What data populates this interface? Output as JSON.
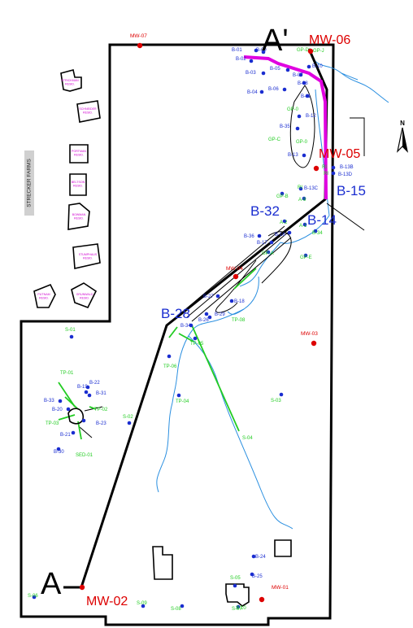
{
  "map": {
    "farm_label": "STRECKER FARMS",
    "section_labels": {
      "a": "A",
      "a_prime": "A'"
    },
    "mw_labels": [
      {
        "id": "mw07",
        "text": "MW-07"
      },
      {
        "id": "mw06",
        "text": "MW-06"
      },
      {
        "id": "mw05",
        "text": "MW-05"
      },
      {
        "id": "mw04",
        "text": "MW-04"
      },
      {
        "id": "mw03",
        "text": "MW-03"
      },
      {
        "id": "mw02",
        "text": "MW-02"
      },
      {
        "id": "mw01",
        "text": "MW-01"
      }
    ],
    "blue_big_labels": [
      {
        "id": "b15",
        "text": "B-15"
      },
      {
        "id": "b32",
        "text": "B-32"
      },
      {
        "id": "b14",
        "text": "B-14"
      },
      {
        "id": "b28",
        "text": "B-28"
      }
    ],
    "boring_labels": [
      {
        "id": "b01",
        "text": "B-01"
      },
      {
        "id": "b02",
        "text": "B-02"
      },
      {
        "id": "b09",
        "text": "B-09"
      },
      {
        "id": "b03",
        "text": "B-03"
      },
      {
        "id": "b05",
        "text": "B-05"
      },
      {
        "id": "b07",
        "text": "B-07"
      },
      {
        "id": "b10",
        "text": "B-10"
      },
      {
        "id": "b04",
        "text": "B-04"
      },
      {
        "id": "b06",
        "text": "B-06"
      },
      {
        "id": "b08",
        "text": "B-08"
      },
      {
        "id": "b11",
        "text": "B-11"
      },
      {
        "id": "b12",
        "text": "B-12"
      },
      {
        "id": "b35",
        "text": "B-35"
      },
      {
        "id": "b13",
        "text": "B-13"
      },
      {
        "id": "b13b",
        "text": "B-13B"
      },
      {
        "id": "b13d",
        "text": "B-13D"
      },
      {
        "id": "b13c",
        "text": "B-13C"
      },
      {
        "id": "b36",
        "text": "B-36"
      },
      {
        "id": "b16",
        "text": "B-16"
      },
      {
        "id": "b17",
        "text": "B-17"
      },
      {
        "id": "b18",
        "text": "B-18"
      },
      {
        "id": "b27",
        "text": "B-27"
      },
      {
        "id": "b29",
        "text": "B-29"
      },
      {
        "id": "b26",
        "text": "B-26"
      },
      {
        "id": "b34",
        "text": "B-34"
      },
      {
        "id": "b19",
        "text": "B-19"
      },
      {
        "id": "b22",
        "text": "B-22"
      },
      {
        "id": "b31",
        "text": "B-31"
      },
      {
        "id": "b33",
        "text": "B-33"
      },
      {
        "id": "b20",
        "text": "B-20"
      },
      {
        "id": "b23",
        "text": "B-23"
      },
      {
        "id": "b21",
        "text": "B-21"
      },
      {
        "id": "b30",
        "text": "B-30"
      },
      {
        "id": "b24",
        "text": "B-24"
      },
      {
        "id": "b25",
        "text": "B-25"
      }
    ],
    "green_labels": [
      {
        "id": "gpd",
        "text": "GP-D"
      },
      {
        "id": "gpj",
        "text": "GP-J"
      },
      {
        "id": "gp0",
        "text": "GP-0"
      },
      {
        "id": "gp0b",
        "text": "GP-0"
      },
      {
        "id": "gpc",
        "text": "GP-C"
      },
      {
        "id": "ri1",
        "text": "RI"
      },
      {
        "id": "ri2",
        "text": "RI"
      },
      {
        "id": "ri3",
        "text": "RI"
      },
      {
        "id": "gpb",
        "text": "GP-B"
      },
      {
        "id": "a9",
        "text": "A-9"
      },
      {
        "id": "a2",
        "text": "A-2"
      },
      {
        "id": "a1",
        "text": "A-1"
      },
      {
        "id": "b34g",
        "text": "B-34"
      },
      {
        "id": "gpe",
        "text": "GP-E"
      },
      {
        "id": "gpa",
        "text": "GP-A"
      },
      {
        "id": "s01",
        "text": "S-01"
      },
      {
        "id": "tp01",
        "text": "TP-01"
      },
      {
        "id": "tp02",
        "text": "TP-02"
      },
      {
        "id": "tp03",
        "text": "TP-03"
      },
      {
        "id": "sed01",
        "text": "SED-01"
      },
      {
        "id": "s02",
        "text": "S-02"
      },
      {
        "id": "tp06",
        "text": "TP-06"
      },
      {
        "id": "tp05",
        "text": "TP-05"
      },
      {
        "id": "tp04",
        "text": "TP-04"
      },
      {
        "id": "tp08",
        "text": "TP-08"
      },
      {
        "id": "s03",
        "text": "S-03"
      },
      {
        "id": "s04",
        "text": "S-04"
      },
      {
        "id": "s05",
        "text": "S-05"
      },
      {
        "id": "s06",
        "text": "S-06"
      },
      {
        "id": "s07",
        "text": "S-07"
      },
      {
        "id": "s08",
        "text": "S-08"
      },
      {
        "id": "s09",
        "text": "S-09"
      },
      {
        "id": "s10",
        "text": "S-10"
      }
    ],
    "building_labels": [
      {
        "id": "bl1",
        "l1": "STRICKMAN",
        "l2": "RESID."
      },
      {
        "id": "bl2",
        "l1": "SCHNEIDER",
        "l2": "RESID."
      },
      {
        "id": "bl3",
        "l1": "PORTMAN",
        "l2": "RESID."
      },
      {
        "id": "bl4",
        "l1": "BELTSON",
        "l2": "RESID."
      },
      {
        "id": "bl5",
        "l1": "BOWMAN",
        "l2": "RESID."
      },
      {
        "id": "bl6",
        "l1": "STUMPHAUS",
        "l2": "RESID."
      },
      {
        "id": "bl7",
        "l1": "GRUNWALD",
        "l2": "RESID."
      },
      {
        "id": "bl8",
        "l1": "PUTNAM",
        "l2": "RESID."
      }
    ],
    "colors": {
      "boundary": "#000000",
      "monitoring_well": "#dd0000",
      "boring": "#1a2dd0",
      "green": "#22cc22",
      "section_magenta": "#e000e0",
      "stream": "#2a8fe0",
      "building_label": "#d000d0"
    }
  }
}
